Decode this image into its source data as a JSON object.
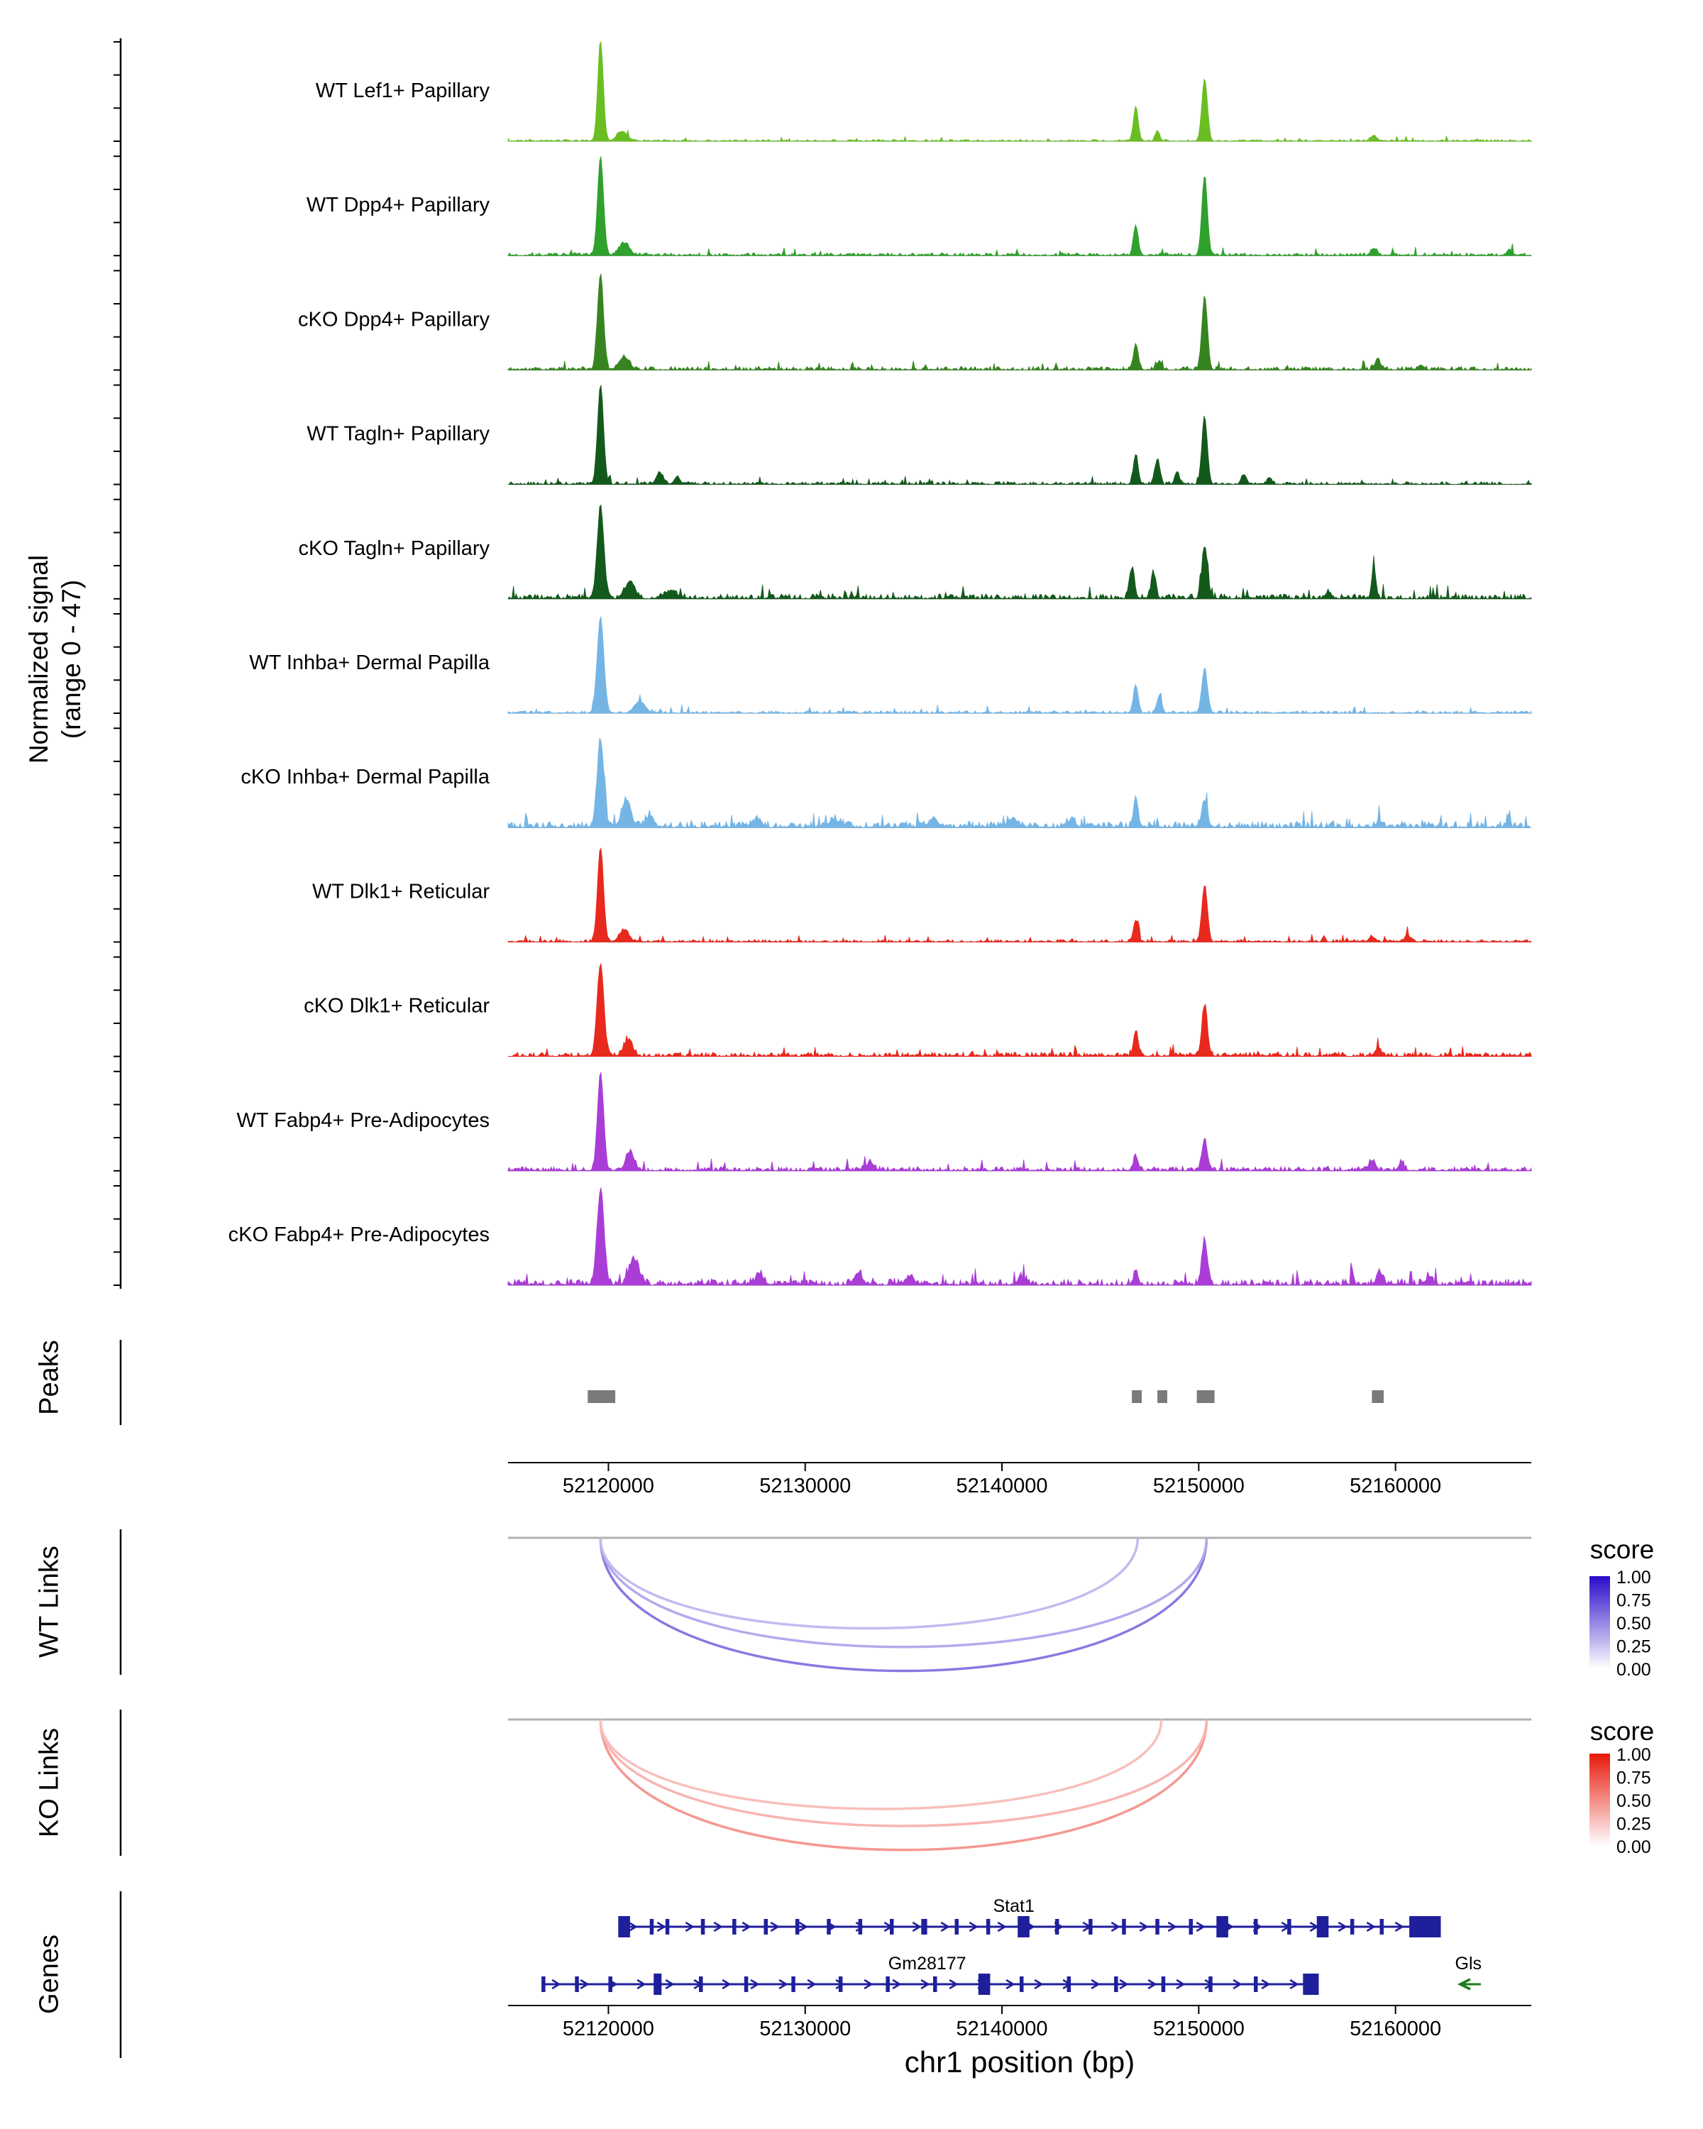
{
  "labels": {
    "ylabel_line1": "Normalized signal",
    "ylabel_line2": "(range 0 - 47)",
    "peaks": "Peaks",
    "wt_links": "WT Links",
    "ko_links": "KO Links",
    "genes": "Genes",
    "xlabel": "chr1 position (bp)"
  },
  "chart_data": {
    "type": "genome-coverage-tracks",
    "region": {
      "chrom": "chr1",
      "start": 52114900,
      "end": 52166900
    },
    "x_ticks": [
      52120000,
      52130000,
      52140000,
      52150000,
      52160000
    ],
    "xlabel": "chr1 position (bp)",
    "ylabel": "Normalized signal (range 0 - 47)",
    "signal_range": [
      0,
      47
    ],
    "tracks": [
      {
        "label": "WT Lef1+ Papillary",
        "color": "#6ABE23",
        "seed": 3,
        "noise": 2.5,
        "peaks": [
          [
            52119600,
            1.0,
            140
          ],
          [
            52120700,
            0.1,
            260
          ],
          [
            52146800,
            0.35,
            120
          ],
          [
            52147900,
            0.1,
            110
          ],
          [
            52150300,
            0.63,
            140
          ],
          [
            52158900,
            0.05,
            170
          ]
        ]
      },
      {
        "label": "WT Dpp4+ Papillary",
        "color": "#2FA12D",
        "seed": 7,
        "noise": 4,
        "peaks": [
          [
            52119600,
            1.0,
            150
          ],
          [
            52120800,
            0.12,
            260
          ],
          [
            52146800,
            0.3,
            120
          ],
          [
            52150300,
            0.8,
            140
          ],
          [
            52158900,
            0.07,
            160
          ],
          [
            52165800,
            0.05,
            150
          ]
        ]
      },
      {
        "label": "cKO Dpp4+ Papillary",
        "color": "#368420",
        "seed": 11,
        "noise": 5,
        "peaks": [
          [
            52119600,
            0.97,
            150
          ],
          [
            52120800,
            0.13,
            260
          ],
          [
            52146800,
            0.26,
            120
          ],
          [
            52148000,
            0.09,
            110
          ],
          [
            52150300,
            0.73,
            140
          ],
          [
            52159100,
            0.09,
            160
          ],
          [
            52161300,
            0.05,
            140
          ]
        ]
      },
      {
        "label": "WT Tagln+ Papillary",
        "color": "#14591C",
        "seed": 19,
        "noise": 4,
        "peaks": [
          [
            52119600,
            1.0,
            150
          ],
          [
            52122600,
            0.12,
            170
          ],
          [
            52123500,
            0.08,
            140
          ],
          [
            52146800,
            0.3,
            120
          ],
          [
            52147900,
            0.25,
            120
          ],
          [
            52148900,
            0.13,
            110
          ],
          [
            52150300,
            0.67,
            140
          ],
          [
            52152300,
            0.1,
            130
          ],
          [
            52153600,
            0.07,
            120
          ]
        ]
      },
      {
        "label": "cKO Tagln+ Papillary",
        "color": "#14591C",
        "seed": 23,
        "noise": 7,
        "peaks": [
          [
            52119600,
            0.92,
            170
          ],
          [
            52121100,
            0.18,
            230
          ],
          [
            52123200,
            0.08,
            280
          ],
          [
            52146600,
            0.3,
            130
          ],
          [
            52147700,
            0.26,
            120
          ],
          [
            52150300,
            0.53,
            140
          ],
          [
            52156600,
            0.07,
            140
          ],
          [
            52158900,
            0.3,
            110
          ]
        ]
      },
      {
        "label": "WT Inhba+ Dermal Papilla",
        "color": "#74B5E6",
        "seed": 31,
        "noise": 3.5,
        "peaks": [
          [
            52119600,
            0.96,
            170
          ],
          [
            52121600,
            0.12,
            260
          ],
          [
            52146800,
            0.28,
            120
          ],
          [
            52148000,
            0.18,
            120
          ],
          [
            52150300,
            0.45,
            140
          ]
        ]
      },
      {
        "label": "cKO Inhba+ Dermal Papilla",
        "color": "#74B5E6",
        "seed": 41,
        "noise": 9,
        "peaks": [
          [
            52119600,
            0.88,
            170
          ],
          [
            52120900,
            0.28,
            220
          ],
          [
            52122100,
            0.12,
            200
          ],
          [
            52127500,
            0.06,
            280
          ],
          [
            52131500,
            0.07,
            300
          ],
          [
            52136500,
            0.07,
            260
          ],
          [
            52140500,
            0.08,
            260
          ],
          [
            52143500,
            0.07,
            220
          ],
          [
            52146800,
            0.28,
            120
          ],
          [
            52150300,
            0.27,
            140
          ],
          [
            52159200,
            0.06,
            160
          ]
        ]
      },
      {
        "label": "WT Dlk1+ Reticular",
        "color": "#E8291D",
        "seed": 47,
        "noise": 3.5,
        "peaks": [
          [
            52119600,
            0.95,
            150
          ],
          [
            52120800,
            0.12,
            240
          ],
          [
            52146800,
            0.22,
            120
          ],
          [
            52150300,
            0.57,
            140
          ],
          [
            52158800,
            0.05,
            150
          ],
          [
            52160600,
            0.07,
            140
          ]
        ]
      },
      {
        "label": "cKO Dlk1+ Reticular",
        "color": "#E8291D",
        "seed": 53,
        "noise": 6,
        "peaks": [
          [
            52119600,
            0.93,
            170
          ],
          [
            52121000,
            0.15,
            240
          ],
          [
            52146800,
            0.24,
            120
          ],
          [
            52150300,
            0.51,
            140
          ],
          [
            52159100,
            0.08,
            150
          ]
        ]
      },
      {
        "label": "WT Fabp4+ Pre-Adipocytes",
        "color": "#A93DD6",
        "seed": 61,
        "noise": 6,
        "peaks": [
          [
            52119600,
            1.0,
            150
          ],
          [
            52121100,
            0.18,
            220
          ],
          [
            52133300,
            0.08,
            200
          ],
          [
            52146800,
            0.14,
            120
          ],
          [
            52150300,
            0.31,
            140
          ],
          [
            52158800,
            0.1,
            150
          ],
          [
            52160300,
            0.08,
            140
          ]
        ]
      },
      {
        "label": "cKO Fabp4+ Pre-Adipocytes",
        "color": "#A93DD6",
        "seed": 71,
        "noise": 9,
        "peaks": [
          [
            52119600,
            0.94,
            180
          ],
          [
            52121300,
            0.26,
            240
          ],
          [
            52127700,
            0.1,
            200
          ],
          [
            52132700,
            0.12,
            200
          ],
          [
            52135300,
            0.08,
            220
          ],
          [
            52141000,
            0.07,
            220
          ],
          [
            52146800,
            0.12,
            120
          ],
          [
            52150300,
            0.45,
            140
          ],
          [
            52159200,
            0.12,
            150
          ],
          [
            52161700,
            0.08,
            150
          ]
        ]
      }
    ],
    "peaks_track": {
      "label": "Peaks",
      "color": "#7A7A7A",
      "intervals": [
        [
          52118950,
          52120350
        ],
        [
          52146600,
          52147100
        ],
        [
          52147900,
          52148400
        ],
        [
          52149900,
          52150800
        ],
        [
          52158800,
          52159400
        ]
      ]
    },
    "links": [
      {
        "label": "WT Links",
        "legend_title": "score",
        "legend_ticks": [
          "1.00",
          "0.75",
          "0.50",
          "0.25",
          "0.00"
        ],
        "color_high": "#2B0AC9",
        "anchor": 52119600,
        "arcs": [
          {
            "to": 52150400,
            "score": 0.55,
            "depth": 250
          },
          {
            "to": 52150400,
            "score": 0.35,
            "depth": 205
          },
          {
            "to": 52146900,
            "score": 0.28,
            "depth": 170
          }
        ]
      },
      {
        "label": "KO Links",
        "legend_title": "score",
        "legend_ticks": [
          "1.00",
          "0.75",
          "0.50",
          "0.25",
          "0.00"
        ],
        "color_high": "#E8190C",
        "anchor": 52119600,
        "arcs": [
          {
            "to": 52150400,
            "score": 0.45,
            "depth": 245
          },
          {
            "to": 52150400,
            "score": 0.32,
            "depth": 200
          },
          {
            "to": 52148100,
            "score": 0.28,
            "depth": 168
          }
        ]
      }
    ],
    "genes": [
      {
        "name": "Stat1",
        "color": "#1F1F9C",
        "strand": "+",
        "row": 1,
        "start": 52120500,
        "end": 52162300,
        "label_pos": 52140600,
        "exons": [
          [
            52120500,
            52121100,
            1
          ],
          [
            52122100,
            52122300,
            0
          ],
          [
            52122900,
            52123100,
            0
          ],
          [
            52124700,
            52124900,
            0
          ],
          [
            52126300,
            52126500,
            0
          ],
          [
            52127900,
            52128100,
            0
          ],
          [
            52129500,
            52129700,
            0
          ],
          [
            52131100,
            52131300,
            0
          ],
          [
            52132700,
            52132900,
            0
          ],
          [
            52134300,
            52134500,
            0
          ],
          [
            52135900,
            52136200,
            0
          ],
          [
            52137600,
            52137800,
            0
          ],
          [
            52139200,
            52139400,
            0
          ],
          [
            52140800,
            52141400,
            1
          ],
          [
            52142700,
            52142900,
            0
          ],
          [
            52144400,
            52144600,
            0
          ],
          [
            52146100,
            52146300,
            0
          ],
          [
            52147800,
            52148000,
            0
          ],
          [
            52149500,
            52149700,
            0
          ],
          [
            52150900,
            52151500,
            1
          ],
          [
            52152800,
            52153000,
            0
          ],
          [
            52154500,
            52154700,
            0
          ],
          [
            52156000,
            52156600,
            1
          ],
          [
            52157700,
            52157900,
            0
          ],
          [
            52159200,
            52159400,
            0
          ],
          [
            52160700,
            52162300,
            1
          ]
        ]
      },
      {
        "name": "Gm28177",
        "color": "#1F1F9C",
        "strand": "+",
        "row": 2,
        "start": 52116600,
        "end": 52156100,
        "label_pos": 52136200,
        "exons": [
          [
            52116600,
            52116800,
            0
          ],
          [
            52118300,
            52118500,
            0
          ],
          [
            52120000,
            52120200,
            0
          ],
          [
            52122300,
            52122700,
            1
          ],
          [
            52124600,
            52124800,
            0
          ],
          [
            52126900,
            52127100,
            0
          ],
          [
            52129300,
            52129500,
            0
          ],
          [
            52131700,
            52131900,
            0
          ],
          [
            52134100,
            52134300,
            0
          ],
          [
            52136500,
            52136700,
            0
          ],
          [
            52138800,
            52139400,
            1
          ],
          [
            52140900,
            52141100,
            0
          ],
          [
            52143300,
            52143500,
            0
          ],
          [
            52145700,
            52145900,
            0
          ],
          [
            52148100,
            52148300,
            0
          ],
          [
            52150500,
            52150700,
            0
          ],
          [
            52152800,
            52153000,
            0
          ],
          [
            52155300,
            52156100,
            1
          ]
        ]
      },
      {
        "name": "Gls",
        "color": "#1E7D1E",
        "strand": "-",
        "row": 2,
        "start": 52163290,
        "end": 52164340,
        "label_pos": 52163700,
        "exons": []
      }
    ]
  }
}
